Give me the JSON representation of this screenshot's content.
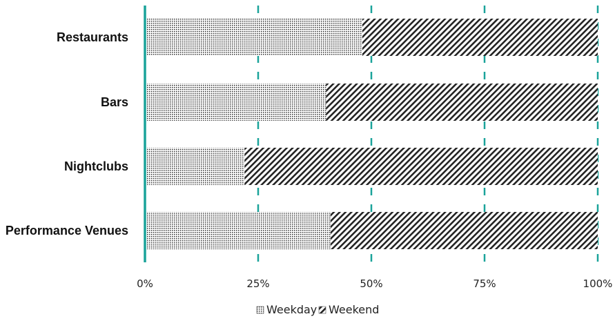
{
  "chart_data": {
    "type": "bar",
    "orientation": "horizontal",
    "stacked": "percent",
    "title": "",
    "xlabel": "",
    "ylabel": "",
    "categories": [
      "Restaurants",
      "Bars",
      "Nightclubs",
      "Performance Venues"
    ],
    "series": [
      {
        "name": "Weekday",
        "values": [
          48,
          40,
          22,
          41
        ],
        "pattern": "dots",
        "color": "#333333"
      },
      {
        "name": "Weekend",
        "values": [
          52,
          60,
          78,
          59
        ],
        "pattern": "diagonal-hatch",
        "color": "#222222"
      }
    ],
    "xlim": [
      0,
      100
    ],
    "xticks": [
      "0%",
      "25%",
      "50%",
      "75%",
      "100%"
    ],
    "grid": {
      "vertical": true,
      "style": "dashed",
      "color": "#1aa39a"
    },
    "axis_color": "#1aa39a",
    "legend": {
      "position": "bottom-center",
      "entries": [
        "Weekday",
        "Weekend"
      ]
    }
  }
}
